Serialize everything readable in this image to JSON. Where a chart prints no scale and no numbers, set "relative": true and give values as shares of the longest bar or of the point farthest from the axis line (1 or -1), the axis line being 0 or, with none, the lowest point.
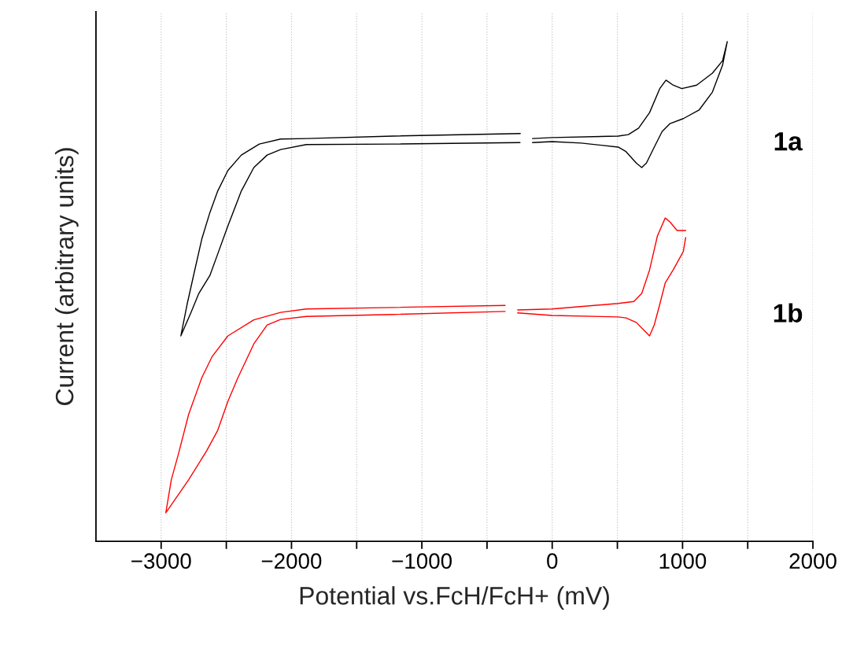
{
  "chart_data": {
    "type": "line",
    "relative": true,
    "xlabel": "Potential vs.FcH/FcH+ (mV)",
    "ylabel": "Current (arbitrary units)",
    "xlim": [
      -3500,
      2000
    ],
    "xticks": [
      -3000,
      {
        "value": -2500,
        "label": null
      },
      -2000,
      {
        "value": -1500,
        "label": null
      },
      -1000,
      {
        "value": -500,
        "label": null
      },
      0,
      {
        "value": 500,
        "label": null
      },
      1000,
      {
        "value": 1500,
        "label": null
      },
      2000
    ],
    "grid": "x",
    "legend": false,
    "line_style": "solid",
    "marker": "none",
    "series": [
      {
        "name": "1a",
        "color": "#000000",
        "x": [
          -245,
          -1223,
          -1886,
          -2084,
          -2247,
          -2385,
          -2488,
          -2566,
          -2626,
          -2687,
          -2747,
          -2801,
          -2849,
          -2771,
          -2711,
          -2626,
          -2566,
          -2488,
          -2385,
          -2289,
          -2187,
          -2084,
          -1886,
          -1223,
          -247,
          null,
          -151,
          0,
          506,
          584,
          663,
          747,
          825,
          873,
          928,
          994,
          1108,
          1229,
          1307,
          1343,
          1307,
          1229,
          1126,
          1006,
          904,
          843,
          783,
          723,
          687,
          645,
          566,
          506,
          223,
          0,
          -151
        ],
        "values": [
          0.816,
          0.811,
          0.806,
          0.805,
          0.795,
          0.773,
          0.742,
          0.701,
          0.658,
          0.606,
          0.537,
          0.474,
          0.411,
          0.458,
          0.496,
          0.532,
          0.575,
          0.631,
          0.701,
          0.748,
          0.773,
          0.784,
          0.794,
          0.795,
          0.798,
          null,
          0.806,
          0.808,
          0.811,
          0.814,
          0.827,
          0.858,
          0.906,
          0.923,
          0.913,
          0.906,
          0.913,
          0.937,
          0.962,
          1.0,
          0.953,
          0.899,
          0.863,
          0.846,
          0.836,
          0.82,
          0.789,
          0.757,
          0.748,
          0.757,
          0.78,
          0.789,
          0.797,
          0.8,
          0.798
        ]
      },
      {
        "name": "1b",
        "color": "#ff0000",
        "x": [
          -361,
          -1223,
          -1886,
          -2084,
          -2289,
          -2488,
          -2608,
          -2687,
          -2789,
          -2867,
          -2922,
          -2964,
          -2789,
          -2651,
          -2566,
          -2488,
          -2410,
          -2289,
          -2187,
          -2084,
          -1886,
          -1223,
          -361,
          null,
          -265,
          0,
          506,
          627,
          687,
          747,
          807,
          867,
          904,
          958,
          1024,
          null,
          1024,
          1006,
          928,
          867,
          825,
          783,
          747,
          705,
          645,
          566,
          506,
          0,
          -265
        ],
        "values": [
          0.472,
          0.468,
          0.465,
          0.458,
          0.443,
          0.411,
          0.37,
          0.328,
          0.254,
          0.175,
          0.123,
          0.057,
          0.123,
          0.181,
          0.222,
          0.28,
          0.328,
          0.395,
          0.433,
          0.444,
          0.45,
          0.454,
          0.46,
          null,
          0.463,
          0.465,
          0.476,
          0.48,
          0.496,
          0.543,
          0.611,
          0.647,
          0.639,
          0.622,
          0.622,
          null,
          0.608,
          0.58,
          0.543,
          0.517,
          0.474,
          0.433,
          0.411,
          0.422,
          0.438,
          0.447,
          0.449,
          0.452,
          0.457
        ]
      }
    ]
  }
}
